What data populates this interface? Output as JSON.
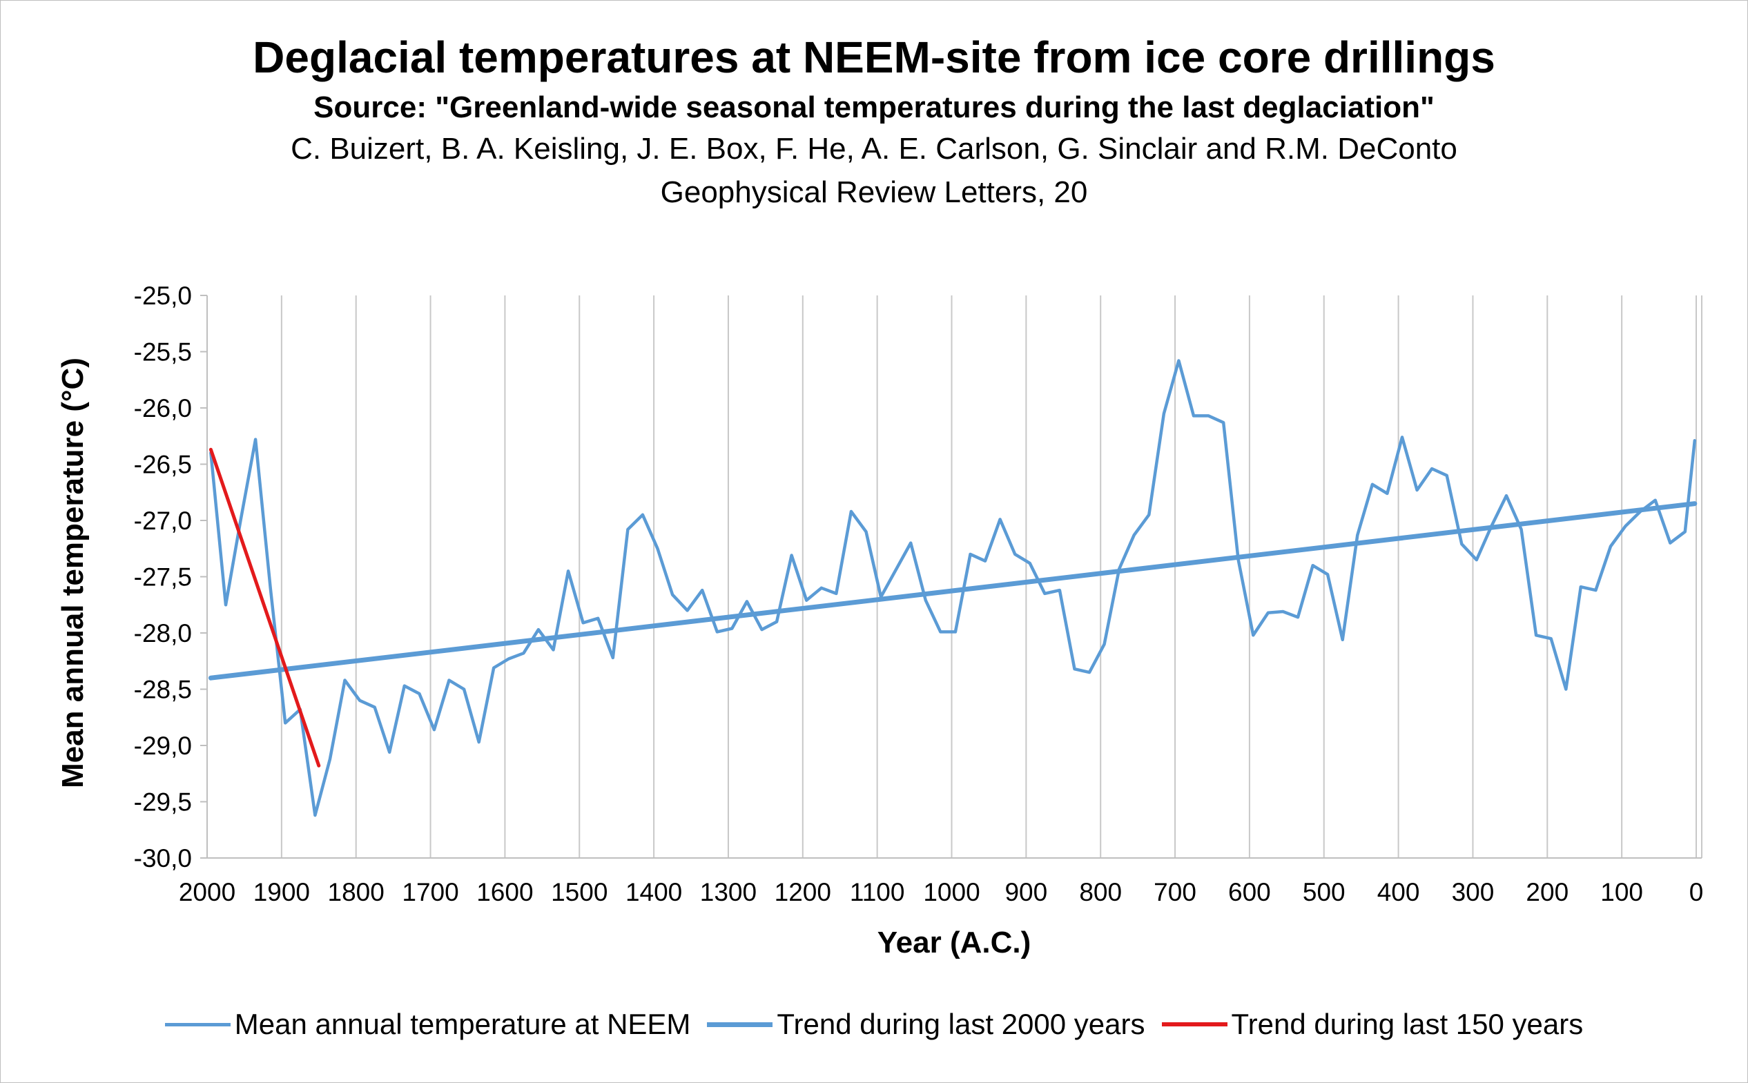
{
  "title": "Deglacial temperatures at NEEM-site from ice core drillings",
  "subtitle": "Source: \"Greenland-wide seasonal temperatures during the last deglaciation\"",
  "authors": "C. Buizert, B. A. Keisling, J. E. Box, F. He, A. E. Carlson, G. Sinclair and R.M. DeConto",
  "journal": "Geophysical Review Letters, 20",
  "colors": {
    "temperature": "#5b9bd5",
    "trend2000": "#5b9bd5",
    "trend150": "#e31a1c",
    "grid": "#c8c8c8"
  },
  "chart_data": {
    "type": "line",
    "xlabel": "Year (A.C.)",
    "ylabel": "Mean annual temperature (°C)",
    "xlim": [
      2000,
      0
    ],
    "ylim": [
      -30.0,
      -25.0
    ],
    "x_ticks": [
      2000,
      1900,
      1800,
      1700,
      1600,
      1500,
      1400,
      1300,
      1200,
      1100,
      1000,
      900,
      800,
      700,
      600,
      500,
      400,
      300,
      200,
      100,
      0
    ],
    "x_tick_labels": [
      "2000",
      "1900",
      "1800",
      "1700",
      "1600",
      "1500",
      "1400",
      "1300",
      "1200",
      "1100",
      "1000",
      "900",
      "800",
      "700",
      "600",
      "500",
      "400",
      "300",
      "200",
      "100",
      "0"
    ],
    "y_ticks": [
      -25.0,
      -25.5,
      -26.0,
      -26.5,
      -27.0,
      -27.5,
      -28.0,
      -28.5,
      -29.0,
      -29.5,
      -30.0
    ],
    "y_tick_labels": [
      "-25,0",
      "-25,5",
      "-26,0",
      "-26,5",
      "-27,0",
      "-27,5",
      "-28,0",
      "-28,5",
      "-29,0",
      "-29,5",
      "-30,0"
    ],
    "grid": "vertical",
    "legend_position": "bottom",
    "series": [
      {
        "name": "Mean annual temperature at NEEM",
        "x": [
          1995,
          1975,
          1955,
          1935,
          1915,
          1895,
          1875,
          1855,
          1835,
          1815,
          1795,
          1775,
          1755,
          1735,
          1715,
          1695,
          1675,
          1655,
          1635,
          1615,
          1595,
          1575,
          1555,
          1535,
          1515,
          1495,
          1475,
          1455,
          1435,
          1415,
          1395,
          1375,
          1355,
          1335,
          1315,
          1295,
          1275,
          1255,
          1235,
          1215,
          1195,
          1175,
          1155,
          1135,
          1115,
          1095,
          1075,
          1055,
          1035,
          1015,
          995,
          975,
          955,
          935,
          915,
          895,
          875,
          855,
          835,
          815,
          795,
          775,
          755,
          735,
          715,
          695,
          675,
          655,
          635,
          615,
          595,
          575,
          555,
          535,
          515,
          495,
          475,
          455,
          435,
          415,
          395,
          375,
          355,
          335,
          315,
          295,
          275,
          255,
          235,
          215,
          195,
          175,
          155,
          135,
          115,
          95,
          75,
          55,
          35,
          15,
          2
        ],
        "y": [
          -26.4,
          -27.75,
          -27.0,
          -26.28,
          -27.6,
          -28.8,
          -28.68,
          -29.62,
          -29.12,
          -28.42,
          -28.6,
          -28.66,
          -29.06,
          -28.47,
          -28.54,
          -28.86,
          -28.42,
          -28.5,
          -28.97,
          -28.31,
          -28.23,
          -28.18,
          -27.97,
          -28.15,
          -27.45,
          -27.91,
          -27.87,
          -28.22,
          -27.08,
          -26.95,
          -27.25,
          -27.66,
          -27.8,
          -27.62,
          -27.99,
          -27.96,
          -27.72,
          -27.97,
          -27.9,
          -27.31,
          -27.71,
          -27.6,
          -27.65,
          -26.92,
          -27.1,
          -27.68,
          -27.44,
          -27.2,
          -27.71,
          -27.99,
          -27.99,
          -27.3,
          -27.36,
          -26.99,
          -27.3,
          -27.38,
          -27.65,
          -27.62,
          -28.32,
          -28.35,
          -28.1,
          -27.43,
          -27.13,
          -26.95,
          -26.05,
          -25.58,
          -26.07,
          -26.07,
          -26.13,
          -27.35,
          -28.02,
          -27.82,
          -27.81,
          -27.86,
          -27.4,
          -27.48,
          -28.06,
          -27.13,
          -26.68,
          -26.76,
          -26.26,
          -26.73,
          -26.54,
          -26.6,
          -27.21,
          -27.35,
          -27.05,
          -26.78,
          -27.08,
          -28.02,
          -28.05,
          -28.5,
          -27.59,
          -27.62,
          -27.23,
          -27.05,
          -26.92,
          -26.82,
          -27.2,
          -27.1,
          -26.29
        ]
      },
      {
        "name": "Trend during last 2000 years",
        "x": [
          1995,
          2
        ],
        "y": [
          -28.4,
          -26.85
        ]
      },
      {
        "name": "Trend during last 150 years",
        "x": [
          1995,
          1850
        ],
        "y": [
          -26.37,
          -29.18
        ]
      }
    ]
  }
}
